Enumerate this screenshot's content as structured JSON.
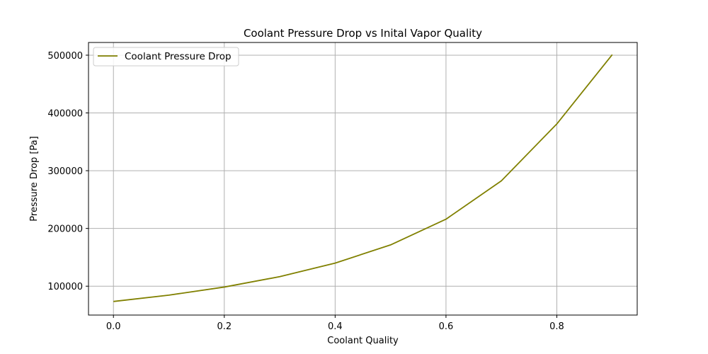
{
  "chart_data": {
    "type": "line",
    "title": "Coolant Pressure Drop vs Inital Vapor Quality",
    "xlabel": "Coolant Quality",
    "ylabel": "Pressure Drop [Pa]",
    "xlim": [
      -0.045,
      0.945
    ],
    "ylim": [
      50000,
      522000
    ],
    "x_ticks": [
      0.0,
      0.2,
      0.4,
      0.6,
      0.8
    ],
    "x_tick_labels": [
      "0.0",
      "0.2",
      "0.4",
      "0.6",
      "0.8"
    ],
    "y_ticks": [
      100000,
      200000,
      300000,
      400000,
      500000
    ],
    "y_tick_labels": [
      "100000",
      "200000",
      "300000",
      "400000",
      "500000"
    ],
    "grid": true,
    "legend_position": "top-left",
    "series": [
      {
        "name": "Coolant Pressure Drop",
        "color": "#808000",
        "x": [
          0.0,
          0.1,
          0.2,
          0.3,
          0.4,
          0.5,
          0.6,
          0.7,
          0.8,
          0.9
        ],
        "y": [
          73500,
          84500,
          98500,
          116500,
          140000,
          171500,
          216000,
          282500,
          381000,
          501000
        ]
      }
    ]
  }
}
